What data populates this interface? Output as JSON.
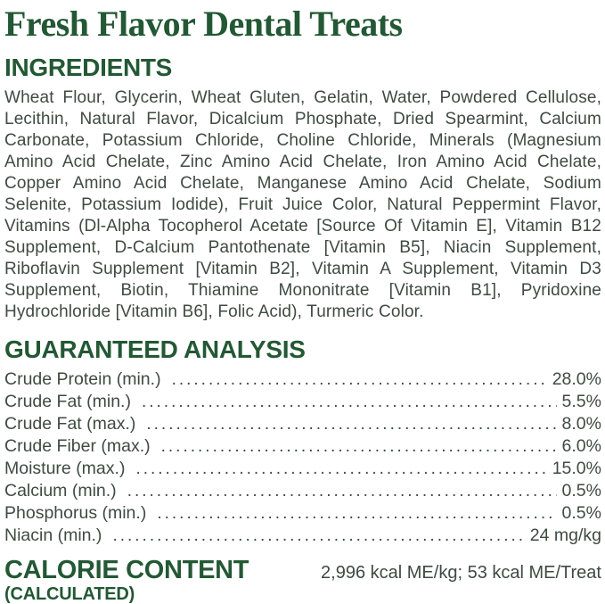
{
  "title": "Fresh Flavor Dental Treats",
  "colors": {
    "heading_green": "#235834",
    "body_text": "#3f4a43",
    "background": "#ffffff"
  },
  "ingredients": {
    "heading": "INGREDIENTS",
    "text": "Wheat Flour, Glycerin, Wheat Gluten, Gelatin, Water, Powdered Cellulose, Lecithin, Natural Flavor, Dicalcium Phosphate, Dried Spearmint, Calcium Carbonate, Potassium Chloride, Choline Chloride, Minerals (Magnesium Amino Acid Chelate, Zinc Amino Acid Chelate, Iron Amino Acid Chelate, Copper Amino Acid Chelate, Manganese Amino Acid Chelate, Sodium Selenite, Potassium Iodide), Fruit Juice Color, Natural Peppermint Flavor, Vitamins (Dl-Alpha Tocopherol Acetate [Source Of Vitamin E], Vitamin B12 Supplement, D-Calcium Pantothenate [Vitamin B5], Niacin Supplement, Riboflavin Supplement [Vitamin B2], Vitamin A Supplement, Vitamin D3 Supplement, Biotin, Thiamine Mononitrate [Vitamin B1], Pyridoxine Hydrochloride [Vitamin B6], Folic Acid), Turmeric Color."
  },
  "analysis": {
    "heading": "GUARANTEED ANALYSIS",
    "rows": [
      {
        "label": "Crude Protein (min.)",
        "value": "28.0%"
      },
      {
        "label": "Crude Fat (min.)",
        "value": "5.5%"
      },
      {
        "label": "Crude Fat (max.)",
        "value": "8.0%"
      },
      {
        "label": "Crude Fiber (max.)",
        "value": "6.0%"
      },
      {
        "label": "Moisture (max.)",
        "value": "15.0%"
      },
      {
        "label": "Calcium (min.)",
        "value": "0.5%"
      },
      {
        "label": "Phosphorus (min.)",
        "value": "0.5%"
      },
      {
        "label": "Niacin (min.)",
        "value": "24 mg/kg"
      }
    ]
  },
  "calorie": {
    "heading": "CALORIE CONTENT",
    "subheading": "(CALCULATED)",
    "value": "2,996 kcal ME/kg; 53 kcal ME/Treat"
  }
}
